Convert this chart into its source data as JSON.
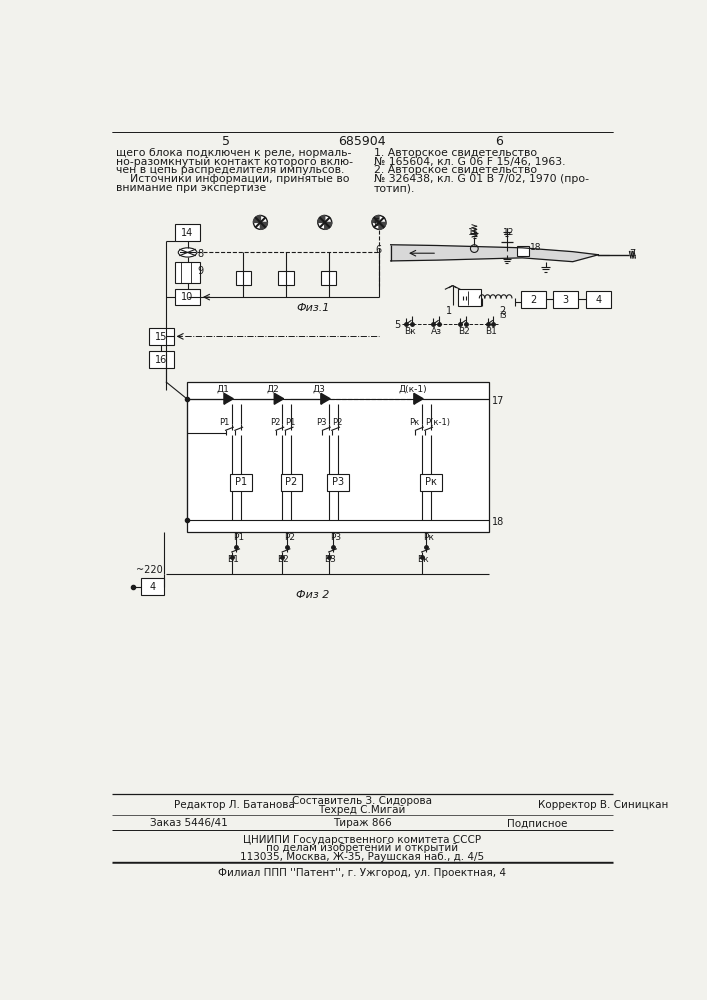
{
  "page_num_left": "5",
  "page_num_center": "685904",
  "page_num_right": "6",
  "text_left_col": [
    "щего блока подключен к реле, нормаль-",
    "но-разомкнутый контакт которого вклю-",
    "чен в цепь распределителя импульсов.",
    "    Источники информации, принятые во",
    "внимание при экспертизе"
  ],
  "text_right_col": [
    "1. Авторское свидетельство",
    "№ 165604, кл. G 06 F 15/46, 1963.",
    "2. Авторское свидетельство",
    "№ 326438, кл. G 01 B 7/02, 1970 (про-",
    "тотип)."
  ],
  "fig1_label": "Физ.1",
  "fig2_label": "Физ 2",
  "footer_editor": "Редактор Л. Батанова",
  "footer_composer": "Составитель З. Сидорова",
  "footer_techred": "Техред С.Мигай",
  "footer_corrector": "Корректор В. Синицкан",
  "footer_order": "Заказ 5446/41",
  "footer_tirazh": "Тираж 866",
  "footer_podpisnoe": "Подписное",
  "footer_org": "ЦНИИПИ Государственного комитета СССР",
  "footer_org2": "по делам изобретений и открытий",
  "footer_addr": "113035, Москва, Ж-35, Раушская наб., д. 4/5",
  "footer_filial": "Филиал ППП ''Патент'', г. Ужгород, ул. Проектная, 4",
  "bg_color": "#f2f2ed",
  "text_color": "#1a1a1a",
  "line_color": "#1a1a1a"
}
